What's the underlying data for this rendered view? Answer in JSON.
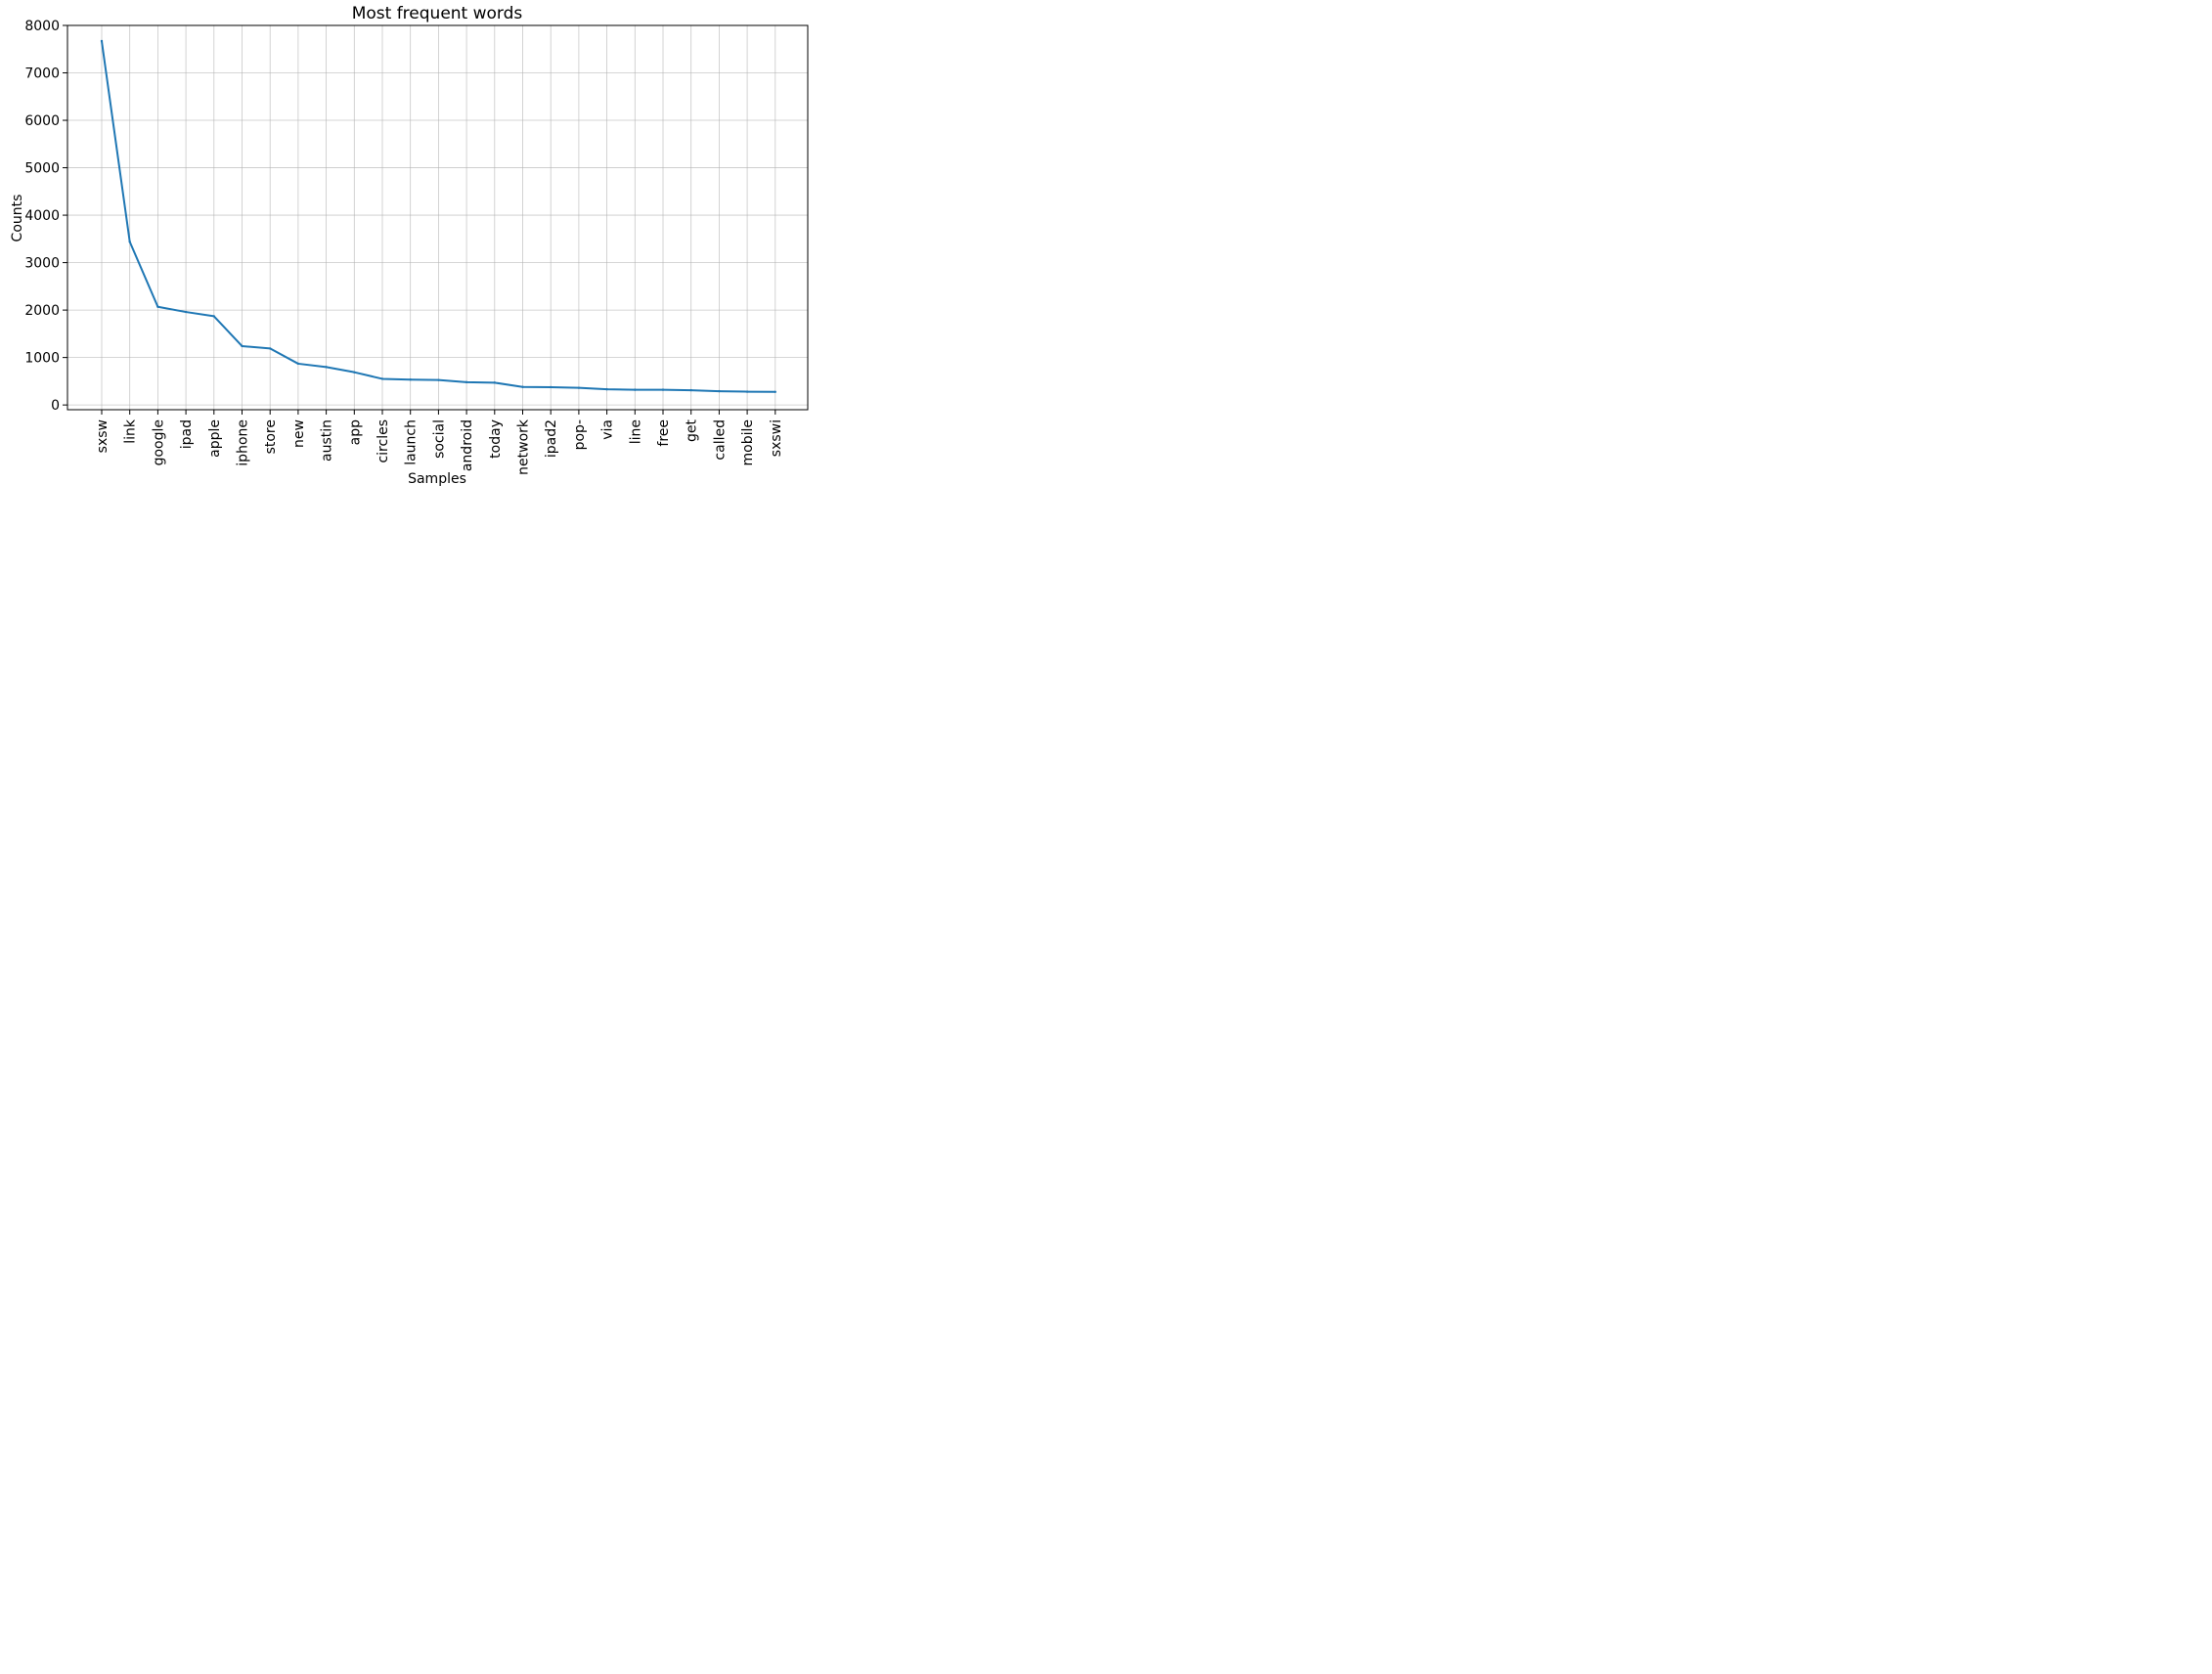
{
  "chart_data": {
    "type": "line",
    "title": "Most frequent words",
    "xlabel": "Samples",
    "ylabel": "Counts",
    "categories": [
      "sxsw",
      "link",
      "google",
      "ipad",
      "apple",
      "iphone",
      "store",
      "new",
      "austin",
      "app",
      "circles",
      "launch",
      "social",
      "android",
      "today",
      "network",
      "ipad2",
      "pop-",
      "via",
      "line",
      "free",
      "get",
      "called",
      "mobile",
      "sxswi"
    ],
    "values": [
      7670,
      3440,
      2070,
      1960,
      1870,
      1240,
      1190,
      870,
      800,
      690,
      550,
      535,
      525,
      480,
      470,
      380,
      375,
      360,
      330,
      320,
      320,
      310,
      290,
      280,
      275
    ],
    "ylim": [
      -100,
      8000
    ],
    "yticks": [
      0,
      1000,
      2000,
      3000,
      4000,
      5000,
      6000,
      7000,
      8000
    ],
    "ytick_labels": [
      "0",
      "1000",
      "2000",
      "3000",
      "4000",
      "5000",
      "6000",
      "7000",
      "8000"
    ],
    "grid": true,
    "line_color": "#1f77b4",
    "grid_color": "#b0b0b0"
  }
}
